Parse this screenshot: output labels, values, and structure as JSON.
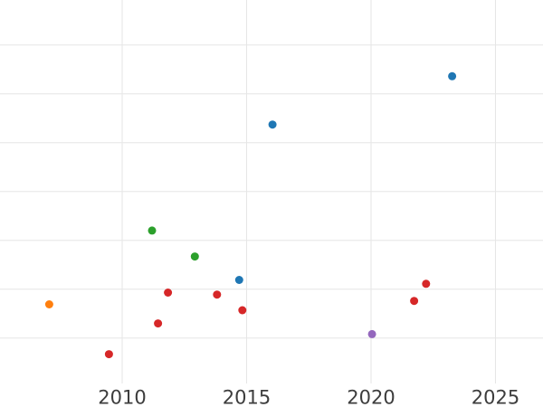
{
  "chart_data": {
    "type": "scatter",
    "title": "",
    "xlabel": "",
    "ylabel": "",
    "legend": "none",
    "grid": true,
    "y_axis_tick_labels_visible": false,
    "x_ticks": [
      2010,
      2015,
      2020,
      2025
    ],
    "x_tick_labels": [
      "2010",
      "2015",
      "2020",
      "2025"
    ],
    "x_range": [
      2005.09,
      2026.91
    ],
    "y_range": [
      -0.93,
      6.92
    ],
    "y_gridlines": [
      0,
      1,
      2,
      3,
      4,
      5,
      6
    ],
    "marker_radius": 4.5,
    "series": [
      {
        "name": "series-blue",
        "color": "#1f77b4",
        "points": [
          [
            2014.7,
            1.19
          ],
          [
            2016.04,
            4.37
          ],
          [
            2023.26,
            5.36
          ]
        ]
      },
      {
        "name": "series-orange",
        "color": "#ff7f0e",
        "points": [
          [
            2007.07,
            0.69
          ]
        ]
      },
      {
        "name": "series-green",
        "color": "#2ca02c",
        "points": [
          [
            2011.2,
            2.2
          ],
          [
            2012.92,
            1.67
          ]
        ]
      },
      {
        "name": "series-red",
        "color": "#d62728",
        "points": [
          [
            2009.47,
            -0.33
          ],
          [
            2011.44,
            0.3
          ],
          [
            2011.84,
            0.93
          ],
          [
            2013.81,
            0.89
          ],
          [
            2014.83,
            0.57
          ],
          [
            2021.73,
            0.76
          ],
          [
            2022.21,
            1.11
          ]
        ]
      },
      {
        "name": "series-purple",
        "color": "#9467bd",
        "points": [
          [
            2020.04,
            0.08
          ]
        ]
      }
    ]
  },
  "styles": {
    "background_color": "#ffffff",
    "grid_color": "#e6e6e6",
    "tick_label_color": "#3d3d3d"
  }
}
